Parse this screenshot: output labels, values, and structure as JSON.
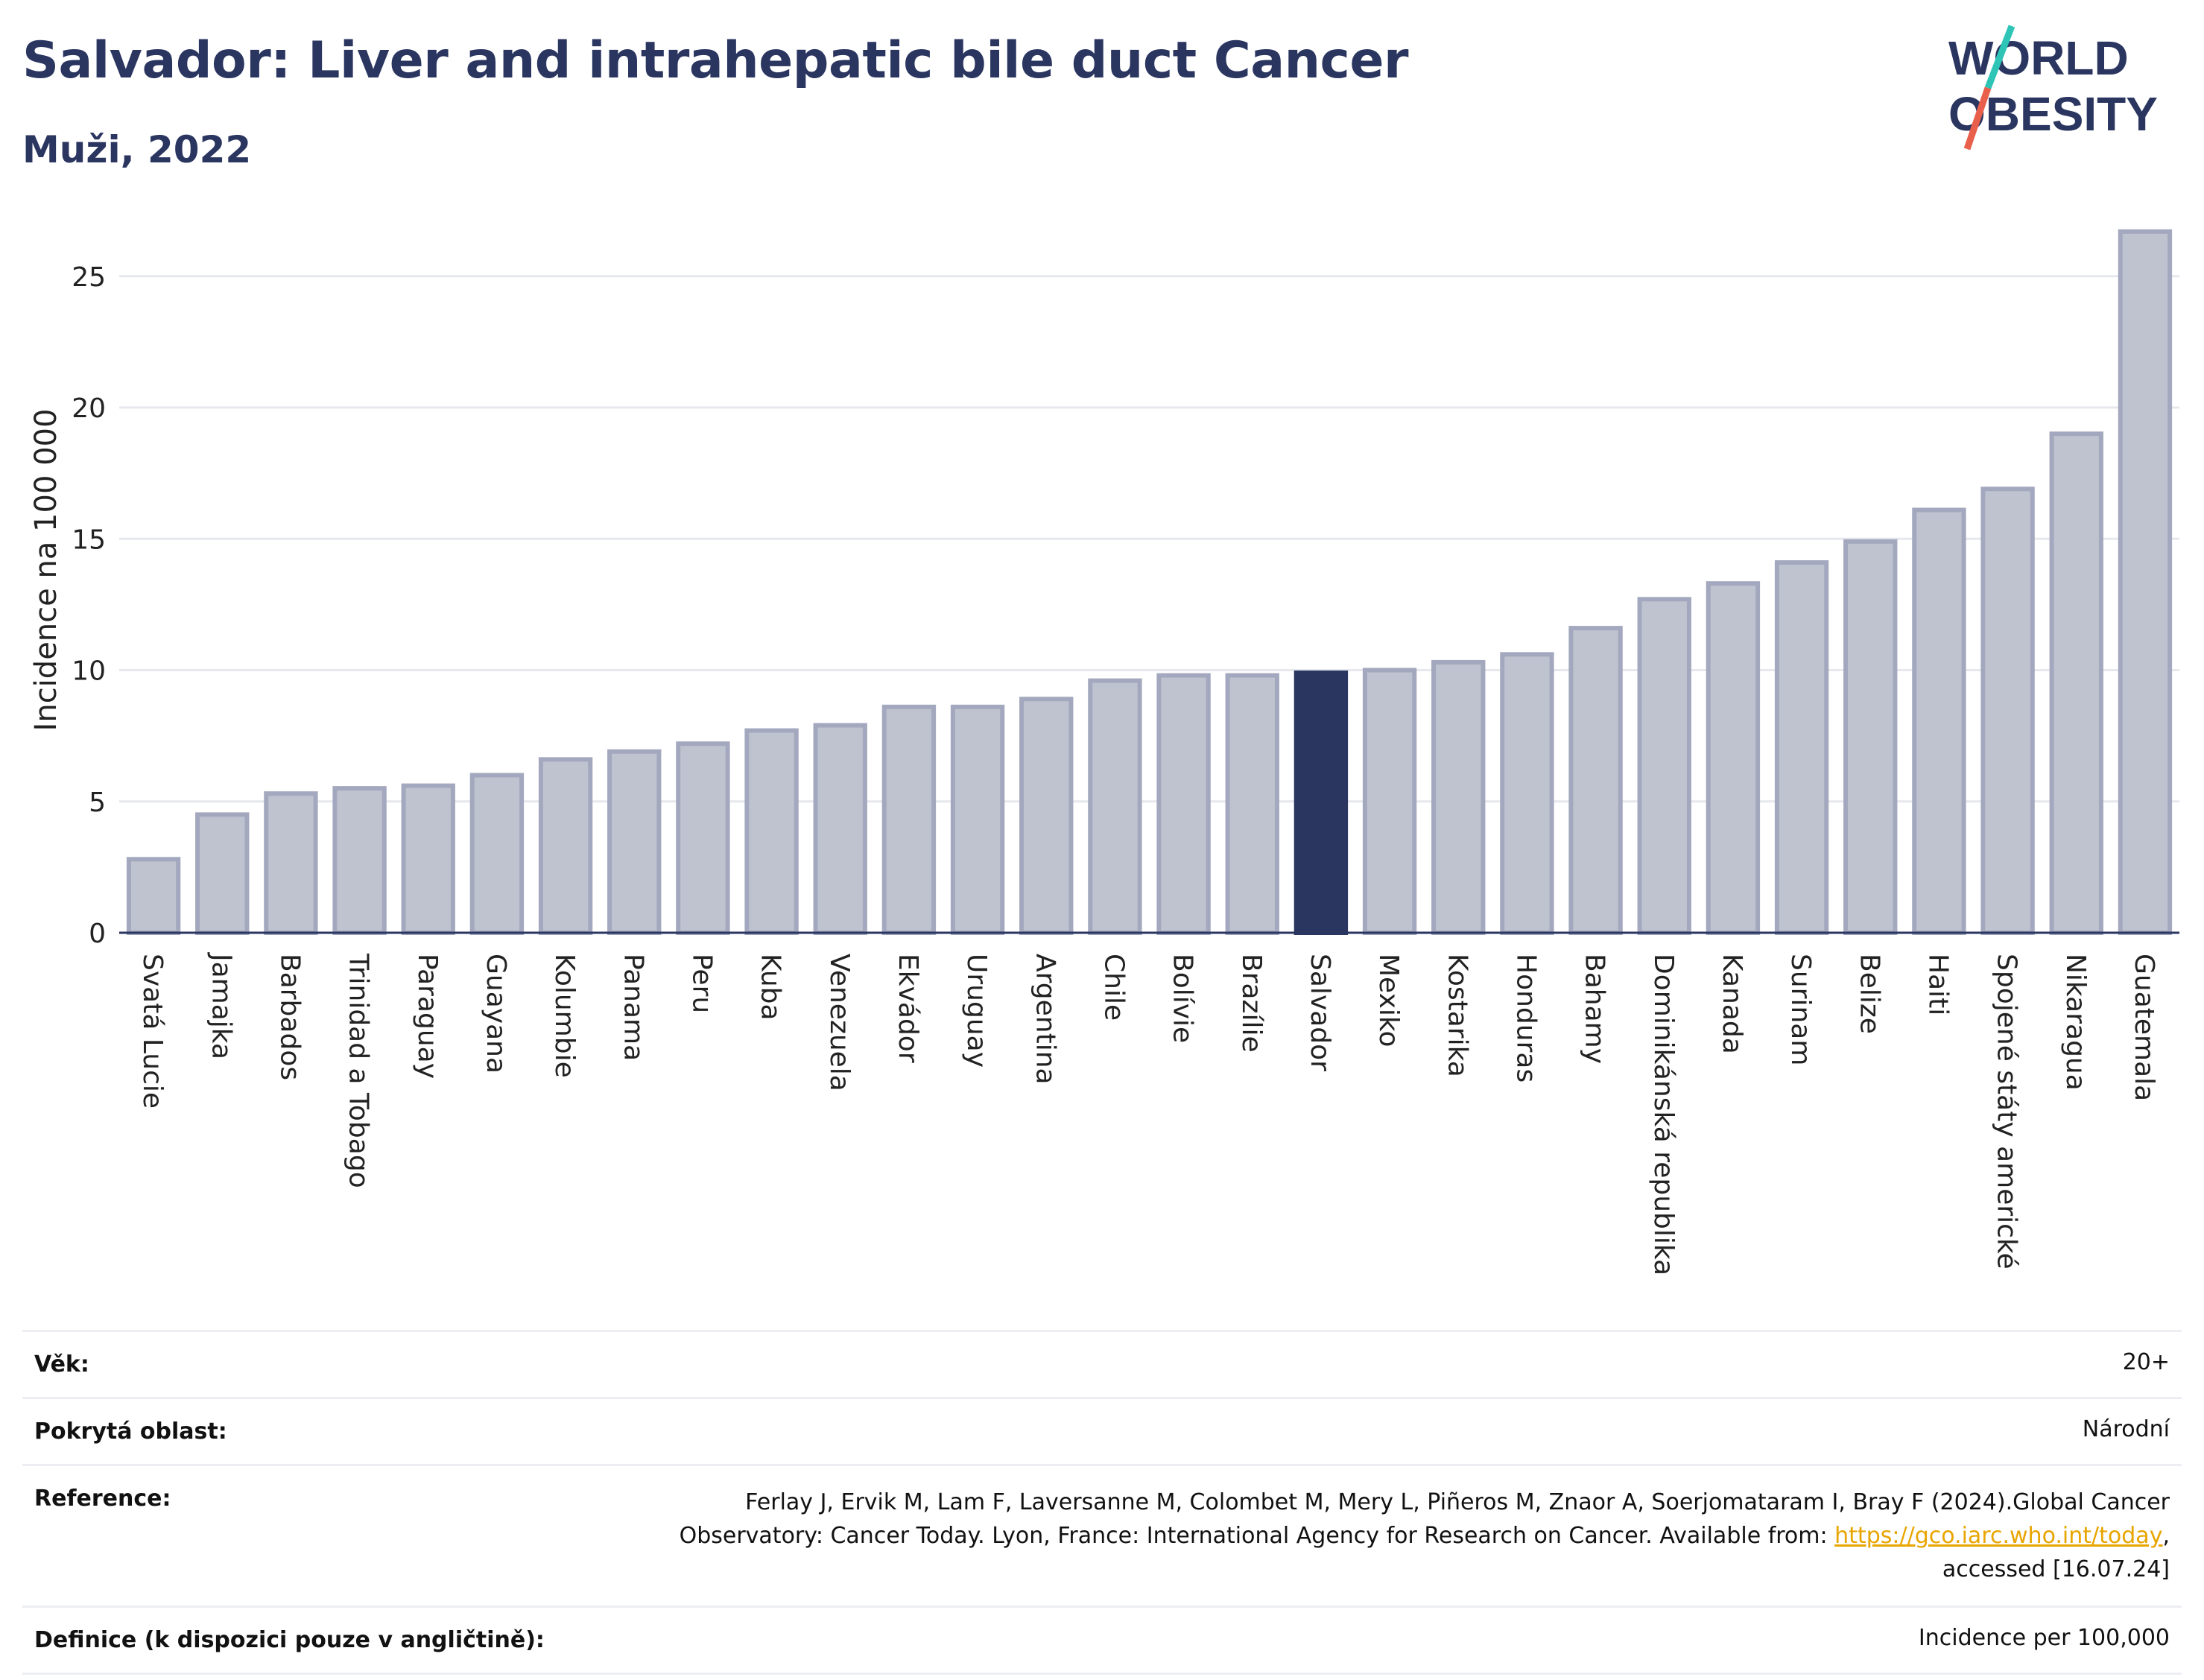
{
  "header": {
    "title": "Salvador: Liver and intrahepatic bile duct Cancer",
    "subtitle": "Muži, 2022"
  },
  "logo": {
    "line1": "WORLD",
    "line2": "OBESITY",
    "colors": {
      "text": "#2a3560",
      "slash_top": "#2ec4b6",
      "slash_bottom": "#e8604c"
    }
  },
  "chart_data": {
    "type": "bar",
    "title": "Salvador: Liver and intrahepatic bile duct Cancer",
    "subtitle": "Muži, 2022",
    "xlabel": "",
    "ylabel": "Incidence na 100 000",
    "ylim": [
      0,
      28
    ],
    "yticks": [
      0,
      5,
      10,
      15,
      20,
      25
    ],
    "grid": true,
    "highlight": "Salvador",
    "colors": {
      "bar": "#bfc3d0",
      "bar_edge": "#a3a8be",
      "highlight": "#2a3560"
    },
    "categories": [
      "Svatá Lucie",
      "Jamajka",
      "Barbados",
      "Trinidad a Tobago",
      "Paraguay",
      "Guayana",
      "Kolumbie",
      "Panama",
      "Peru",
      "Kuba",
      "Venezuela",
      "Ekvádor",
      "Uruguay",
      "Argentina",
      "Chile",
      "Bolívie",
      "Brazílie",
      "Salvador",
      "Mexiko",
      "Kostarika",
      "Honduras",
      "Bahamy",
      "Dominikánská republika",
      "Kanada",
      "Surinam",
      "Belize",
      "Haiti",
      "Spojené státy americké",
      "Nikaragua",
      "Guatemala"
    ],
    "values": [
      2.8,
      4.5,
      5.3,
      5.5,
      5.6,
      6.0,
      6.6,
      6.9,
      7.2,
      7.7,
      7.9,
      8.6,
      8.6,
      8.9,
      9.6,
      9.8,
      9.8,
      9.9,
      10.0,
      10.3,
      10.6,
      11.6,
      12.7,
      13.3,
      14.1,
      14.9,
      16.1,
      16.9,
      19.0,
      26.7
    ]
  },
  "meta": {
    "age_label": "Věk:",
    "age_value": "20+",
    "coverage_label": "Pokrytá oblast:",
    "coverage_value": "Národní",
    "reference_label": "Reference:",
    "reference_line1": "Ferlay J, Ervik M, Lam F, Laversanne M, Colombet M, Mery L, Piñeros M, Znaor A, Soerjomataram I, Bray F (2024).Global Cancer",
    "reference_line2": "Observatory: Cancer Today. Lyon, France: International Agency for Research on Cancer. Available from: ",
    "reference_link": "https://gco.iarc.who.int/today",
    "reference_line2_end": ",",
    "reference_line3": "accessed [16.07.24]",
    "definition_label": "Definice (k dispozici pouze v angličtině):",
    "definition_value": "Incidence per 100,000"
  }
}
